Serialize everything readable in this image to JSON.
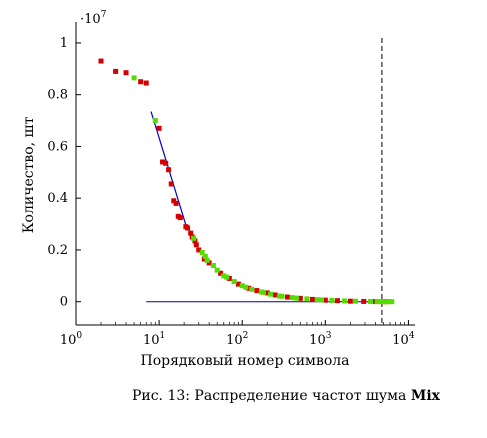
{
  "chart_data": {
    "type": "scatter",
    "title": "",
    "xlabel": "Порядковый номер символа",
    "ylabel": "Количество, шт",
    "y_multiplier": {
      "base": "10",
      "exponent": "7"
    },
    "x_scale": "log",
    "x_ticks": [
      {
        "value": 1,
        "base": "10",
        "exp": "0"
      },
      {
        "value": 10,
        "base": "10",
        "exp": "1"
      },
      {
        "value": 100,
        "base": "10",
        "exp": "2"
      },
      {
        "value": 1000,
        "base": "10",
        "exp": "3"
      },
      {
        "value": 10000,
        "base": "10",
        "exp": "4"
      }
    ],
    "y_ticks": [
      {
        "value": 0,
        "label": "0"
      },
      {
        "value": 0.2,
        "label": "0.2"
      },
      {
        "value": 0.4,
        "label": "0.4"
      },
      {
        "value": 0.6,
        "label": "0.6"
      },
      {
        "value": 0.8,
        "label": "0.8"
      },
      {
        "value": 1,
        "label": "1"
      }
    ],
    "xlim": [
      1,
      12000
    ],
    "ylim": [
      -0.09,
      1.05
    ],
    "colors": {
      "red": "#d40000",
      "green": "#55dd00",
      "fit": "#0000cc",
      "vline": "#000000"
    },
    "series": [
      {
        "marker": "square",
        "color": "red",
        "points": [
          [
            2,
            0.93
          ],
          [
            3,
            0.89
          ],
          [
            4,
            0.885
          ],
          [
            6,
            0.85
          ],
          [
            7,
            0.845
          ],
          [
            10,
            0.67
          ],
          [
            11,
            0.54
          ],
          [
            12,
            0.535
          ],
          [
            13,
            0.51
          ],
          [
            14,
            0.455
          ],
          [
            15,
            0.39
          ],
          [
            16,
            0.38
          ],
          [
            17,
            0.33
          ],
          [
            18,
            0.325
          ],
          [
            21,
            0.29
          ],
          [
            22,
            0.285
          ],
          [
            24,
            0.265
          ],
          [
            25,
            0.25
          ],
          [
            27,
            0.235
          ],
          [
            28,
            0.22
          ],
          [
            30,
            0.2
          ],
          [
            35,
            0.165
          ],
          [
            40,
            0.15
          ],
          [
            55,
            0.11
          ],
          [
            70,
            0.09
          ],
          [
            90,
            0.068
          ],
          [
            120,
            0.052
          ],
          [
            150,
            0.043
          ],
          [
            200,
            0.034
          ],
          [
            250,
            0.026
          ],
          [
            350,
            0.018
          ],
          [
            500,
            0.013
          ],
          [
            700,
            0.009
          ],
          [
            1000,
            0.006
          ],
          [
            1400,
            0.004
          ],
          [
            2000,
            0.002
          ],
          [
            2900,
            0.001
          ],
          [
            4000,
            0.0005
          ],
          [
            5000,
            0.0003
          ],
          [
            5500,
            0.0002
          ]
        ]
      },
      {
        "marker": "square",
        "color": "green",
        "points": [
          [
            5,
            0.865
          ],
          [
            9,
            0.7
          ],
          [
            26,
            0.245
          ],
          [
            33,
            0.19
          ],
          [
            36,
            0.175
          ],
          [
            38,
            0.16
          ],
          [
            45,
            0.14
          ],
          [
            50,
            0.122
          ],
          [
            60,
            0.1
          ],
          [
            65,
            0.095
          ],
          [
            80,
            0.078
          ],
          [
            100,
            0.062
          ],
          [
            110,
            0.056
          ],
          [
            130,
            0.048
          ],
          [
            170,
            0.038
          ],
          [
            180,
            0.036
          ],
          [
            220,
            0.029
          ],
          [
            280,
            0.022
          ],
          [
            300,
            0.021
          ],
          [
            400,
            0.016
          ],
          [
            450,
            0.014
          ],
          [
            600,
            0.011
          ],
          [
            800,
            0.008
          ],
          [
            900,
            0.007
          ],
          [
            1200,
            0.005
          ],
          [
            1700,
            0.003
          ],
          [
            2300,
            0.002
          ],
          [
            3500,
            0.001
          ],
          [
            4200,
            0.0006
          ],
          [
            4600,
            0.0004
          ],
          [
            5200,
            0.0003
          ],
          [
            5800,
            0.0002
          ],
          [
            6300,
            0.0001
          ]
        ]
      }
    ],
    "fit_line": {
      "color": "fit",
      "points": [
        [
          8,
          0.735
        ],
        [
          22,
          0.275
        ]
      ]
    },
    "vertical_line": {
      "x": 4800,
      "style": "dashed",
      "color": "vline"
    }
  },
  "caption": {
    "text": "Рис. 13: Распределение частот шума ",
    "bold": "Mix"
  }
}
